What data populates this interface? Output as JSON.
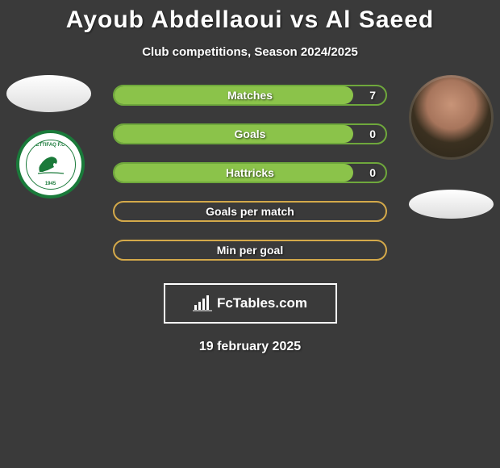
{
  "title": "Ayoub Abdellaoui vs Al Saeed",
  "subtitle": "Club competitions, Season 2024/2025",
  "date": "19 february 2025",
  "branding": "FcTables.com",
  "colors": {
    "background": "#3a3a3a",
    "border_a": "#6fa83c",
    "fill_a": "#8bc34a",
    "border_b": "#d4a94a",
    "text": "#ffffff",
    "logo_green": "#1a7a3a"
  },
  "stats": [
    {
      "label": "Matches",
      "value_right": "7",
      "has_bar": true,
      "bar_pct": 88,
      "border": "#6fa83c",
      "fill": "#8bc34a"
    },
    {
      "label": "Goals",
      "value_right": "0",
      "has_bar": true,
      "bar_pct": 88,
      "border": "#6fa83c",
      "fill": "#8bc34a"
    },
    {
      "label": "Hattricks",
      "value_right": "0",
      "has_bar": true,
      "bar_pct": 88,
      "border": "#6fa83c",
      "fill": "#8bc34a"
    },
    {
      "label": "Goals per match",
      "value_right": "",
      "has_bar": false,
      "bar_pct": 0,
      "border": "#d4a94a",
      "fill": ""
    },
    {
      "label": "Min per goal",
      "value_right": "",
      "has_bar": false,
      "bar_pct": 0,
      "border": "#d4a94a",
      "fill": ""
    }
  ],
  "logo_left": {
    "text_top": "ETTIFAQ F.C",
    "year": "1945"
  }
}
